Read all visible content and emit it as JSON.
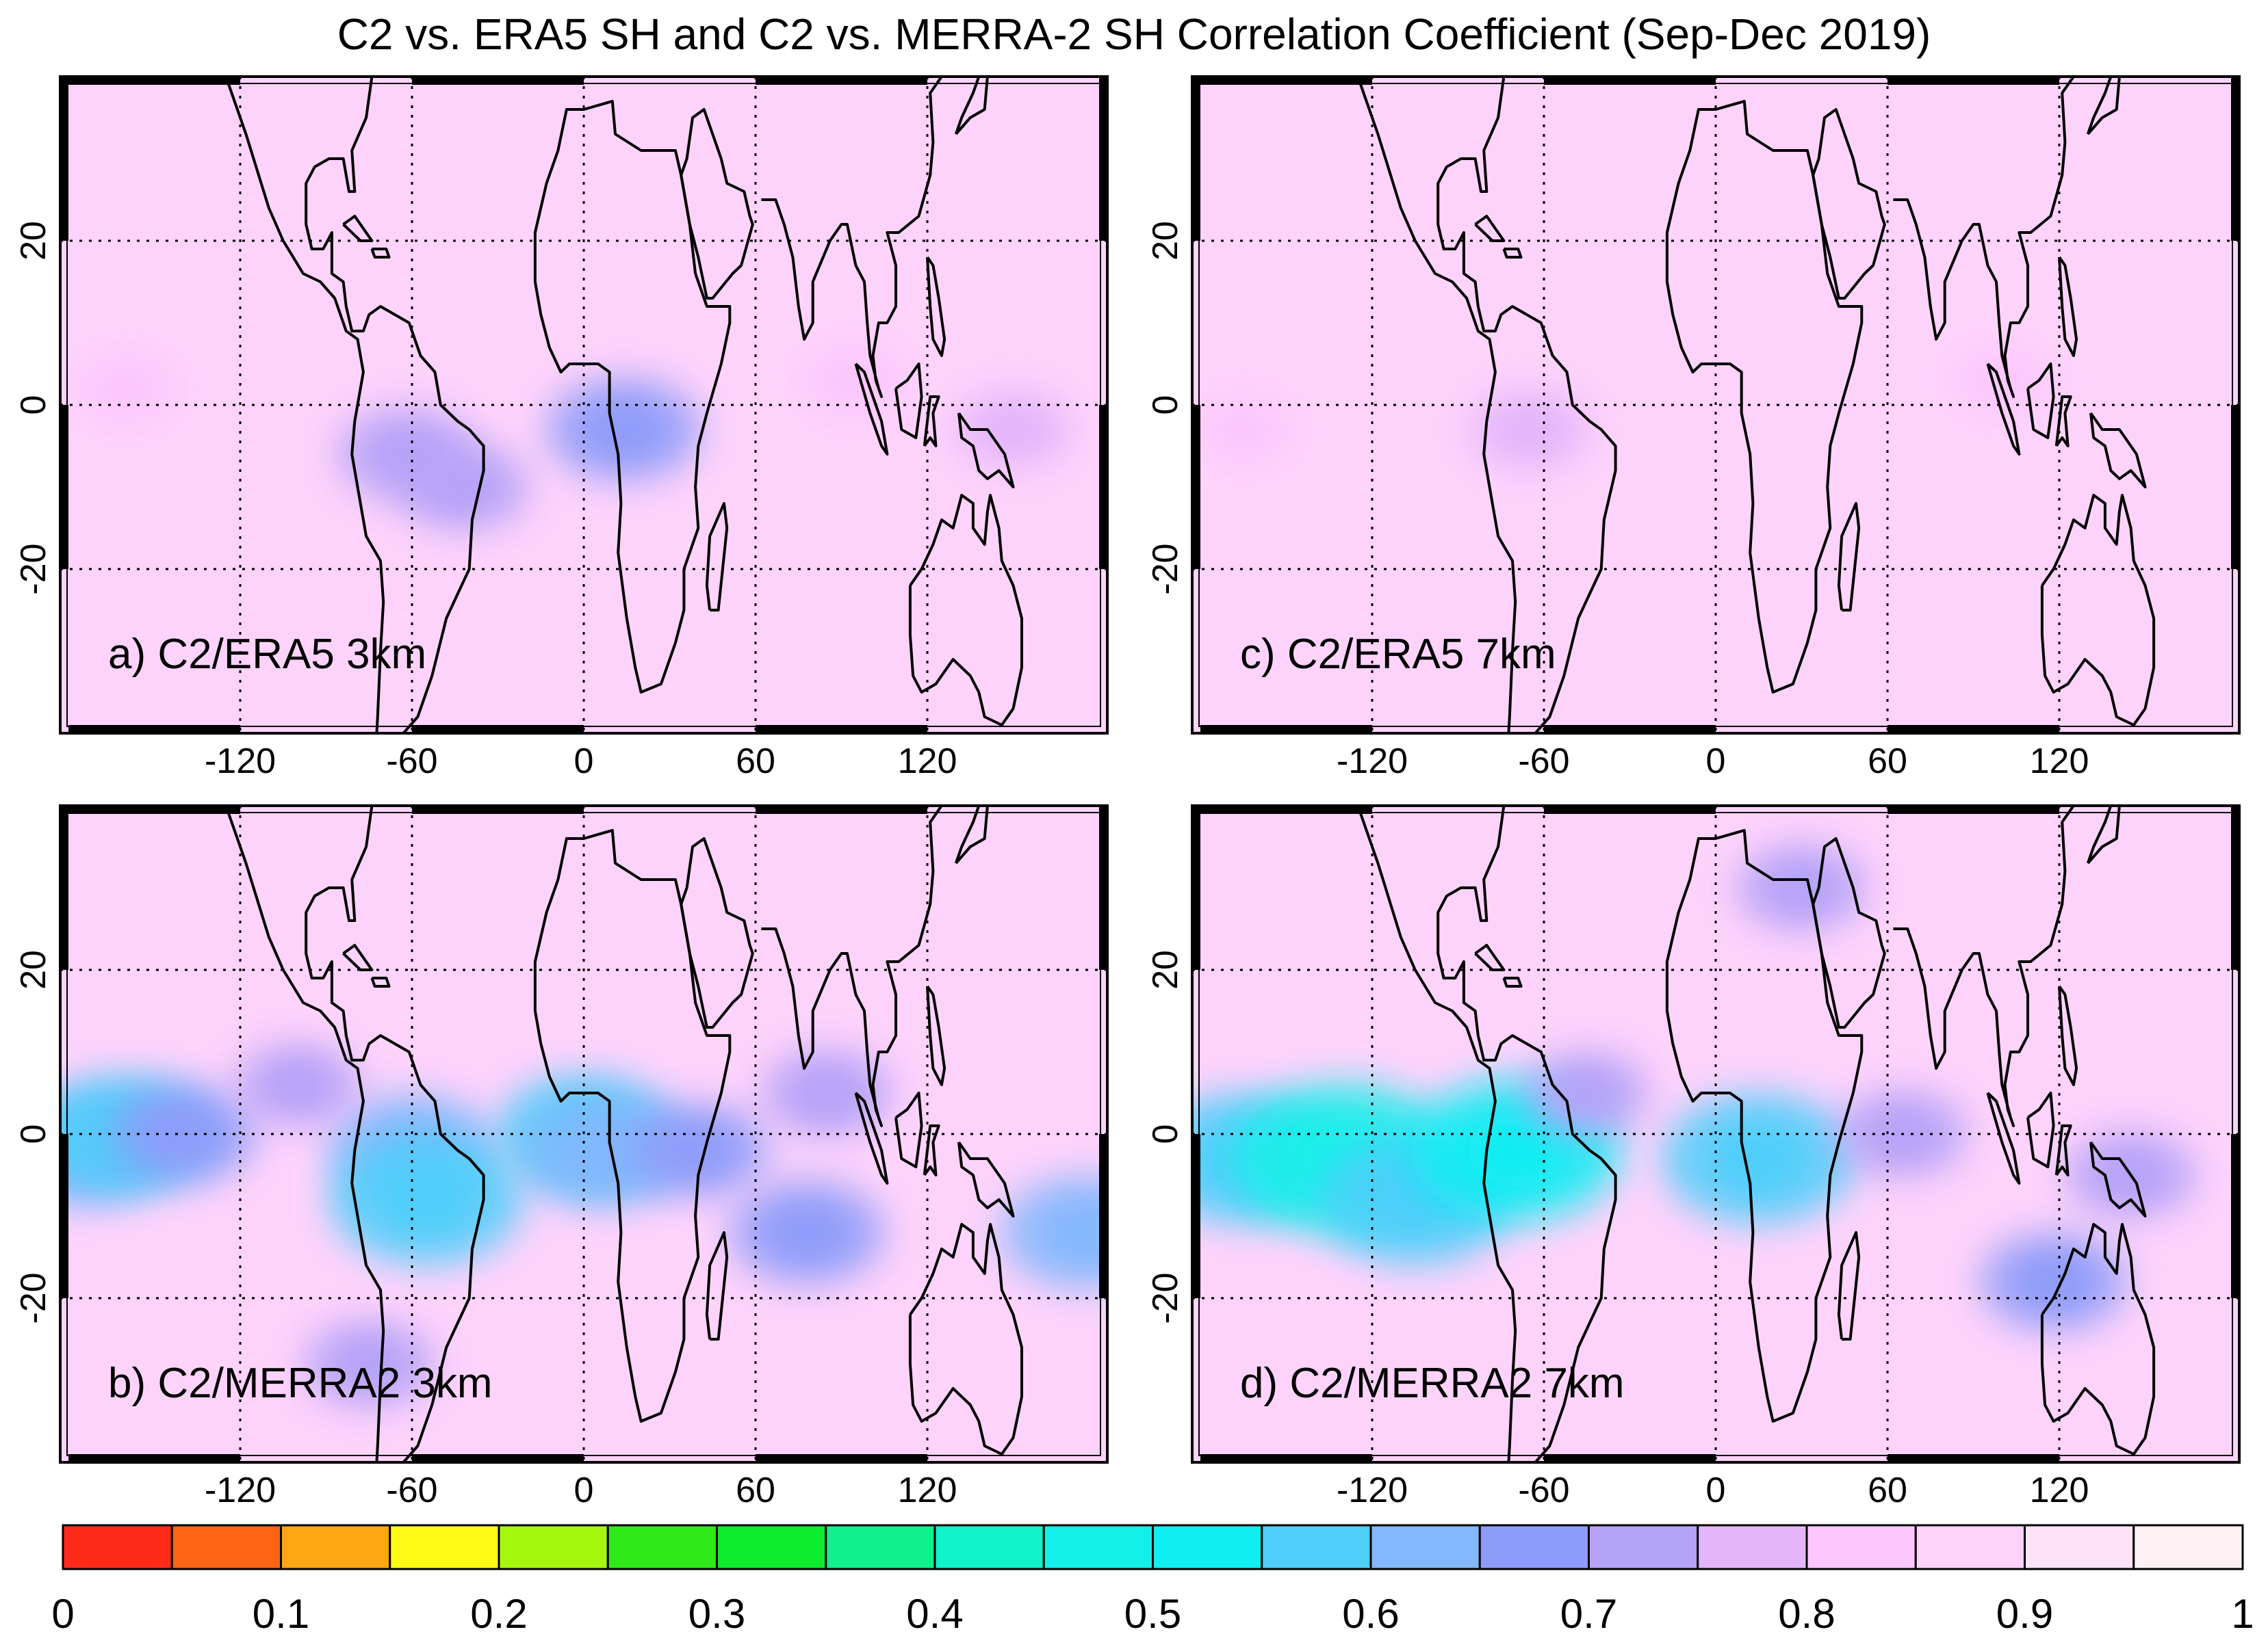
{
  "chart_data": {
    "type": "heatmap",
    "title": "C2 vs. ERA5 SH and C2 vs. MERRA-2 SH Correlation Coefficient (Sep-Dec 2019)",
    "x_ticks": [
      "-120",
      "-60",
      "0",
      "60",
      "120"
    ],
    "x_tick_values": [
      -120,
      -60,
      0,
      60,
      120
    ],
    "y_ticks": [
      "20",
      "0",
      "-20"
    ],
    "y_tick_values": [
      20,
      0,
      -20
    ],
    "xlim": [
      -180,
      180
    ],
    "ylim": [
      -40,
      40
    ],
    "panels": [
      {
        "label": "a) C2/ERA5 3km",
        "dataset": "ERA5",
        "altitude_km": 3,
        "lon_range": [
          -180,
          180
        ],
        "background_value": 0.88,
        "anomalies": [
          {
            "lon": 14,
            "lat": -3,
            "value": 0.68
          },
          {
            "lon": -62,
            "lat": -6,
            "value": 0.72
          },
          {
            "lon": -42,
            "lat": -10,
            "value": 0.74
          },
          {
            "lon": 150,
            "lat": -3,
            "value": 0.78
          },
          {
            "lon": -160,
            "lat": 2,
            "value": 0.82
          },
          {
            "lon": 95,
            "lat": 3,
            "value": 0.8
          }
        ]
      },
      {
        "label": "b) C2/MERRA2 3km",
        "dataset": "MERRA-2",
        "altitude_km": 3,
        "lon_range": [
          -180,
          180
        ],
        "background_value": 0.86,
        "anomalies": [
          {
            "lon": -175,
            "lat": -2,
            "value": 0.62
          },
          {
            "lon": -160,
            "lat": 0,
            "value": 0.6
          },
          {
            "lon": -140,
            "lat": 0,
            "value": 0.68
          },
          {
            "lon": -60,
            "lat": -2,
            "value": 0.62
          },
          {
            "lon": -55,
            "lat": -8,
            "value": 0.55
          },
          {
            "lon": -75,
            "lat": -28,
            "value": 0.72
          },
          {
            "lon": 0,
            "lat": 0,
            "value": 0.6
          },
          {
            "lon": 8,
            "lat": -2,
            "value": 0.62
          },
          {
            "lon": 40,
            "lat": -2,
            "value": 0.7
          },
          {
            "lon": 78,
            "lat": -12,
            "value": 0.66
          },
          {
            "lon": 85,
            "lat": 5,
            "value": 0.72
          },
          {
            "lon": 175,
            "lat": -12,
            "value": 0.62
          },
          {
            "lon": -100,
            "lat": 6,
            "value": 0.74
          }
        ]
      },
      {
        "label": "c) C2/ERA5 7km",
        "dataset": "ERA5",
        "altitude_km": 7,
        "lon_range": [
          -180,
          180
        ],
        "background_value": 0.89,
        "anomalies": [
          {
            "lon": -65,
            "lat": -3,
            "value": 0.78
          },
          {
            "lon": -165,
            "lat": -3,
            "value": 0.84
          },
          {
            "lon": 100,
            "lat": 3,
            "value": 0.84
          }
        ]
      },
      {
        "label": "d) C2/MERRA2 7km",
        "dataset": "MERRA-2",
        "altitude_km": 7,
        "lon_range": [
          -180,
          180
        ],
        "background_value": 0.86,
        "anomalies": [
          {
            "lon": -165,
            "lat": -3,
            "value": 0.55
          },
          {
            "lon": -130,
            "lat": -3,
            "value": 0.47
          },
          {
            "lon": -105,
            "lat": -8,
            "value": 0.55
          },
          {
            "lon": -70,
            "lat": -2,
            "value": 0.5
          },
          {
            "lon": 15,
            "lat": -3,
            "value": 0.55
          },
          {
            "lon": 118,
            "lat": -18,
            "value": 0.68
          },
          {
            "lon": 30,
            "lat": 30,
            "value": 0.72
          },
          {
            "lon": 65,
            "lat": 0,
            "value": 0.72
          },
          {
            "lon": 145,
            "lat": -5,
            "value": 0.72
          },
          {
            "lon": -45,
            "lat": 5,
            "value": 0.74
          }
        ]
      }
    ],
    "colorbar": {
      "min": 0,
      "max": 1,
      "step": 0.05,
      "labels": [
        "0",
        "0.1",
        "0.2",
        "0.3",
        "0.4",
        "0.5",
        "0.6",
        "0.7",
        "0.8",
        "0.9",
        "1"
      ],
      "colors": [
        "#ff2a1a",
        "#ff6414",
        "#ffa712",
        "#fffa14",
        "#a6f70e",
        "#2fea18",
        "#0ded2e",
        "#0ff18c",
        "#10f2c9",
        "#13f0e9",
        "#10eef2",
        "#4ecff9",
        "#83b8fc",
        "#8e9cf9",
        "#b5a3f8",
        "#e3b6fb",
        "#fcc7fc",
        "#fdd3fb",
        "#fee2f5",
        "#fff0f3"
      ]
    }
  }
}
